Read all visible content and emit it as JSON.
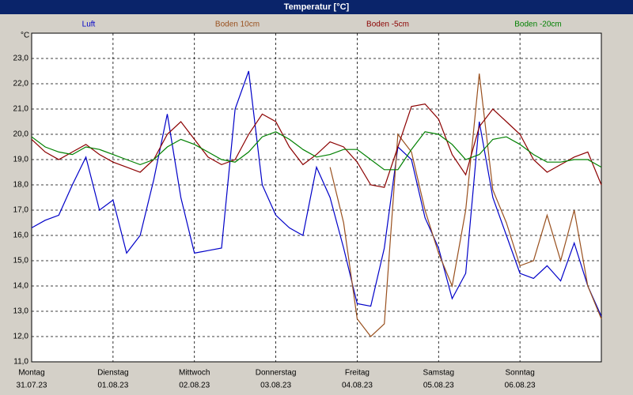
{
  "chart_data": {
    "type": "line",
    "title": "Temperatur [°C]",
    "y_unit": "°C",
    "x": [
      0,
      4,
      8,
      12,
      16,
      20,
      24,
      28,
      32,
      36,
      40,
      44,
      48,
      52,
      56,
      60,
      64,
      68,
      72,
      76,
      80,
      84,
      88,
      92,
      96,
      100,
      104,
      108,
      112,
      116,
      120,
      124,
      128,
      132,
      136,
      140,
      144,
      148,
      152,
      156,
      160,
      164,
      168
    ],
    "xlim": [
      0,
      168
    ],
    "xticks": [
      {
        "value": 0,
        "label": "Montag"
      },
      {
        "value": 24,
        "label": "Dienstag"
      },
      {
        "value": 48,
        "label": "Mittwoch"
      },
      {
        "value": 72,
        "label": "Donnerstag"
      },
      {
        "value": 96,
        "label": "Freitag"
      },
      {
        "value": 120,
        "label": "Samstag"
      },
      {
        "value": 144,
        "label": "Sonntag"
      }
    ],
    "xtick_dates": [
      "31.07.23",
      "01.08.23",
      "02.08.23",
      "03.08.23",
      "04.08.23",
      "05.08.23",
      "06.08.23"
    ],
    "ylim": [
      11,
      24
    ],
    "yticks": [
      {
        "value": 11,
        "label": "11,0"
      },
      {
        "value": 12,
        "label": "12,0"
      },
      {
        "value": 13,
        "label": "13,0"
      },
      {
        "value": 14,
        "label": "14,0"
      },
      {
        "value": 15,
        "label": "15,0"
      },
      {
        "value": 16,
        "label": "16,0"
      },
      {
        "value": 17,
        "label": "17,0"
      },
      {
        "value": 18,
        "label": "18,0"
      },
      {
        "value": 19,
        "label": "19,0"
      },
      {
        "value": 20,
        "label": "20,0"
      },
      {
        "value": 21,
        "label": "21,0"
      },
      {
        "value": 22,
        "label": "22,0"
      },
      {
        "value": 23,
        "label": "23,0"
      }
    ],
    "grid": true,
    "series": [
      {
        "name": "Luft",
        "color": "#0000c8",
        "values": [
          16.3,
          16.6,
          16.8,
          18.0,
          19.1,
          17.0,
          17.4,
          15.3,
          16.0,
          18.2,
          20.8,
          17.5,
          15.3,
          15.4,
          15.5,
          21.0,
          22.5,
          18.0,
          16.8,
          16.3,
          16.0,
          18.7,
          17.5,
          15.5,
          13.3,
          13.2,
          15.5,
          19.5,
          19.0,
          16.7,
          15.5,
          13.5,
          14.5,
          20.5,
          17.5,
          16.0,
          14.5,
          14.3,
          14.8,
          14.2,
          15.7,
          14.0,
          12.8
        ]
      },
      {
        "name": "Boden 10cm",
        "color": "#99501e",
        "values": [
          null,
          null,
          null,
          null,
          null,
          null,
          null,
          null,
          null,
          null,
          null,
          null,
          null,
          null,
          null,
          null,
          null,
          null,
          null,
          null,
          null,
          null,
          18.7,
          16.5,
          12.7,
          12.0,
          12.5,
          20.0,
          19.3,
          17.0,
          15.3,
          14.0,
          17.0,
          22.4,
          17.8,
          16.5,
          14.8,
          15.0,
          16.8,
          15.0,
          17.0,
          14.0,
          12.7
        ]
      },
      {
        "name": "Boden -5cm",
        "color": "#8b0000",
        "values": [
          19.8,
          19.3,
          19.0,
          19.3,
          19.6,
          19.2,
          18.9,
          18.7,
          18.5,
          19.0,
          20.0,
          20.5,
          19.8,
          19.1,
          18.8,
          19.0,
          20.0,
          20.8,
          20.5,
          19.5,
          18.8,
          19.2,
          19.7,
          19.5,
          18.9,
          18.0,
          17.9,
          19.5,
          21.1,
          21.2,
          20.6,
          19.2,
          18.4,
          20.3,
          21.0,
          20.5,
          20.0,
          19.0,
          18.5,
          18.8,
          19.1,
          19.3,
          18.0
        ]
      },
      {
        "name": "Boden -20cm",
        "color": "#008000",
        "values": [
          19.9,
          19.5,
          19.3,
          19.2,
          19.5,
          19.4,
          19.2,
          19.0,
          18.8,
          19.0,
          19.5,
          19.8,
          19.6,
          19.3,
          19.0,
          18.9,
          19.3,
          19.9,
          20.1,
          19.8,
          19.4,
          19.1,
          19.2,
          19.4,
          19.4,
          19.0,
          18.6,
          18.6,
          19.4,
          20.1,
          20.0,
          19.6,
          19.0,
          19.2,
          19.8,
          19.9,
          19.6,
          19.2,
          18.9,
          18.9,
          19.0,
          19.0,
          18.7
        ]
      }
    ]
  }
}
